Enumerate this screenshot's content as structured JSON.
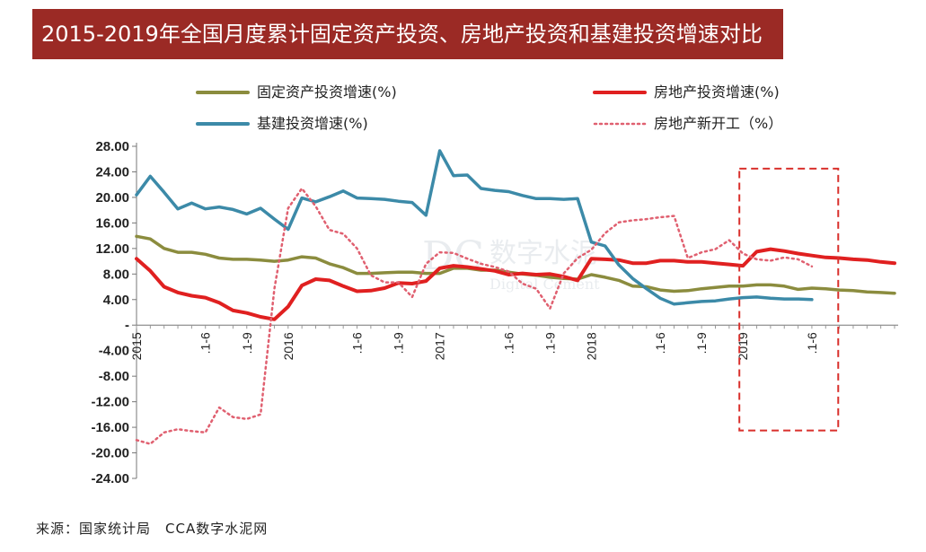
{
  "title": "2015-2019年全国月度累计固定资产投资、房地产投资和基建投资增速对比",
  "source": "来源：国家统计局　CCA数字水泥网",
  "watermark": {
    "cn": "数字水泥",
    "en": "Digital Cement",
    "logo": "DC"
  },
  "colors": {
    "title_bg": "#9b2a25",
    "fixed_asset": "#8b8c3e",
    "real_estate": "#e02020",
    "infrastructure": "#3c8aa8",
    "new_construction": "#e06070",
    "highlight_box": "#d9302c"
  },
  "chart_data": {
    "type": "line",
    "ylim": [
      -24,
      28
    ],
    "yticks": [
      "28.00",
      "24.00",
      "20.00",
      "16.00",
      "12.00",
      "8.00",
      "4.00",
      "-",
      "-4.00",
      "-8.00",
      "-12.00",
      "-16.00",
      "-20.00",
      "-24.00"
    ],
    "ytick_values": [
      28,
      24,
      20,
      16,
      12,
      8,
      4,
      0,
      -4,
      -8,
      -12,
      -16,
      -20,
      -24
    ],
    "x_count": 56,
    "x_labels": [
      {
        "index": 0,
        "label": "2015"
      },
      {
        "index": 5,
        "label": ".1-6"
      },
      {
        "index": 8,
        "label": ".1-9"
      },
      {
        "index": 11,
        "label": "2016"
      },
      {
        "index": 16,
        "label": ".1-6"
      },
      {
        "index": 19,
        "label": ".1-9"
      },
      {
        "index": 22,
        "label": "2017"
      },
      {
        "index": 27,
        "label": ".1-6"
      },
      {
        "index": 30,
        "label": ".1-9"
      },
      {
        "index": 33,
        "label": "2018"
      },
      {
        "index": 38,
        "label": ".1-6"
      },
      {
        "index": 41,
        "label": ".1-9"
      },
      {
        "index": 44,
        "label": "2019"
      },
      {
        "index": 49,
        "label": ".1-6"
      }
    ],
    "legend": [
      {
        "name": "固定资产投资增速(%)",
        "key": "fixed_asset",
        "style": "solid"
      },
      {
        "name": "房地产投资增速(%)",
        "key": "real_estate",
        "style": "solid"
      },
      {
        "name": "基建投资增速(%)",
        "key": "infrastructure",
        "style": "solid"
      },
      {
        "name": "房地产新开工（%）",
        "key": "new_construction",
        "style": "dotted"
      }
    ],
    "series": [
      {
        "name": "固定资产投资增速(%)",
        "key": "fixed_asset",
        "values": [
          13.9,
          13.5,
          12.0,
          11.4,
          11.4,
          11.1,
          10.5,
          10.3,
          10.3,
          10.2,
          10.0,
          10.2,
          10.7,
          10.5,
          9.6,
          9.0,
          8.1,
          8.1,
          8.2,
          8.3,
          8.3,
          8.1,
          8.1,
          8.9,
          8.9,
          8.6,
          8.6,
          8.3,
          8.0,
          7.8,
          7.5,
          7.3,
          7.2,
          7.9,
          7.5,
          7.0,
          6.1,
          6.0,
          5.5,
          5.3,
          5.4,
          5.7,
          5.9,
          6.1,
          6.1,
          6.3,
          6.3,
          6.1,
          5.6,
          5.8,
          5.7,
          5.5,
          5.4,
          5.2,
          5.1,
          5.0
        ]
      },
      {
        "name": "房地产投资增速(%)",
        "key": "real_estate",
        "values": [
          10.4,
          8.5,
          6.0,
          5.1,
          4.6,
          4.3,
          3.5,
          2.3,
          1.9,
          1.3,
          0.9,
          2.9,
          6.2,
          7.2,
          7.0,
          6.1,
          5.3,
          5.4,
          5.8,
          6.6,
          6.5,
          6.9,
          8.9,
          9.3,
          9.1,
          8.8,
          8.5,
          7.9,
          8.1,
          7.9,
          8.0,
          7.6,
          7.0,
          10.4,
          10.3,
          10.2,
          9.7,
          9.7,
          10.1,
          10.1,
          9.9,
          9.9,
          9.7,
          9.5,
          9.3,
          11.5,
          11.9,
          11.6,
          11.2,
          10.9,
          10.6,
          10.5,
          10.3,
          10.2,
          9.9,
          9.7
        ]
      },
      {
        "name": "基建投资增速(%)",
        "key": "infrastructure",
        "values": [
          20.4,
          23.3,
          20.8,
          18.2,
          19.1,
          18.2,
          18.5,
          18.1,
          17.4,
          18.3,
          16.6,
          15.0,
          19.9,
          19.3,
          20.1,
          21.0,
          19.9,
          19.8,
          19.7,
          19.4,
          19.2,
          17.2,
          27.3,
          23.4,
          23.5,
          21.4,
          21.1,
          20.9,
          20.3,
          19.8,
          19.8,
          19.7,
          19.8,
          13.0,
          12.4,
          9.4,
          7.3,
          5.7,
          4.2,
          3.3,
          3.5,
          3.7,
          3.8,
          4.1,
          4.3,
          4.4,
          4.2,
          4.1,
          4.1,
          4.0
        ]
      },
      {
        "name": "房地产新开工（%）",
        "key": "new_construction",
        "values": [
          -18.0,
          -18.6,
          -16.8,
          -16.3,
          -16.6,
          -16.8,
          -12.9,
          -14.4,
          -14.7,
          -14.0,
          5.7,
          18.3,
          21.4,
          18.6,
          14.9,
          14.3,
          12.0,
          7.8,
          6.7,
          6.7,
          4.4,
          9.6,
          11.4,
          11.3,
          10.4,
          9.6,
          9.1,
          8.4,
          6.5,
          5.7,
          2.6,
          8.1,
          10.5,
          11.8,
          14.4,
          16.1,
          16.4,
          16.6,
          16.9,
          17.1,
          10.5,
          11.4,
          11.9,
          13.3,
          11.2,
          10.3,
          10.1,
          10.6,
          10.3,
          9.2
        ]
      }
    ],
    "highlight": {
      "x_start": 44,
      "x_end": 50,
      "y_top": 24.5,
      "y_bottom": -16.5
    }
  }
}
